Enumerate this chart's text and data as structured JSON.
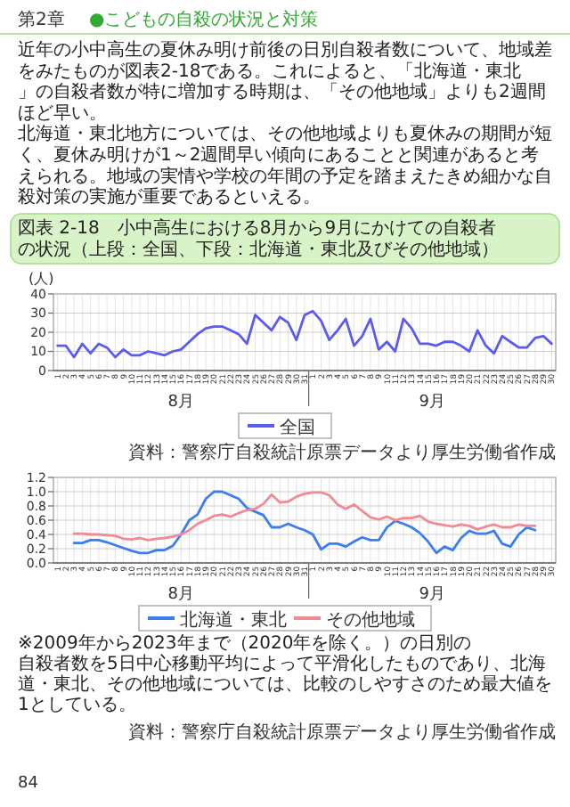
{
  "chart_data": [
    {
      "type": "line",
      "title": "図表 2-18　小中高生における8月から9月にかけての自殺者の状況（上段：全国、下段：北海道・東北及びその他地域）",
      "ylabel": "(人)",
      "categories": [
        "1",
        "2",
        "3",
        "4",
        "5",
        "6",
        "7",
        "8",
        "9",
        "10",
        "11",
        "12",
        "13",
        "14",
        "15",
        "16",
        "17",
        "18",
        "19",
        "20",
        "21",
        "22",
        "23",
        "24",
        "25",
        "26",
        "27",
        "28",
        "29",
        "30",
        "31",
        "1",
        "2",
        "3",
        "4",
        "5",
        "6",
        "7",
        "8",
        "9",
        "10",
        "11",
        "12",
        "13",
        "14",
        "15",
        "16",
        "17",
        "18",
        "19",
        "20",
        "21",
        "22",
        "23",
        "24",
        "25",
        "26",
        "27",
        "28",
        "29",
        "30"
      ],
      "series": [
        {
          "name": "全国",
          "color": "#5b5bf2",
          "values": [
            13,
            13,
            7,
            14,
            9,
            14,
            12,
            7,
            11,
            8,
            8,
            10,
            9,
            8,
            10,
            11,
            15,
            19,
            22,
            23,
            23,
            21,
            19,
            14,
            29,
            25,
            21,
            28,
            25,
            16,
            29,
            31,
            26,
            16,
            21,
            27,
            13,
            18,
            27,
            11,
            15,
            10,
            27,
            22,
            14,
            14,
            13,
            15,
            15,
            13,
            10,
            21,
            13,
            9,
            18,
            15,
            12,
            12,
            17,
            18,
            14
          ]
        }
      ],
      "ylim": [
        0,
        40
      ],
      "yticks": [
        0,
        10,
        20,
        30,
        40
      ],
      "grid": true,
      "legend": "bottom",
      "marker": "none",
      "line_style": "solid",
      "annotations": [
        "第2章",
        "●こどもの自殺の状況と対策",
        "近年の小中高生の夏休み明け前後の日別自殺者数について、地域差をみたものが図表2-18である。これによると、「北海道・東北」の自殺者数が特に増加する時期は、「その他地域」よりも2週間ほど早い。",
        "北海道・東北地方については、その他地域よりも夏休みの期間が短く、夏休み明けが1～2週間早い傾向にあることと関連があると考えられる。地域の実情や学校の年間の予定を踏まえたきめ細かな自殺対策の実施が重要であるといえる。",
        "8月",
        "9月",
        "資料：警察庁自殺統計原票データより厚生労働省作成",
        "84"
      ]
    },
    {
      "type": "line",
      "categories": [
        "1",
        "2",
        "3",
        "4",
        "5",
        "6",
        "7",
        "8",
        "9",
        "10",
        "11",
        "12",
        "13",
        "14",
        "15",
        "16",
        "17",
        "18",
        "19",
        "20",
        "21",
        "22",
        "23",
        "24",
        "25",
        "26",
        "27",
        "28",
        "29",
        "30",
        "31",
        "1",
        "2",
        "3",
        "4",
        "5",
        "6",
        "7",
        "8",
        "9",
        "10",
        "11",
        "12",
        "13",
        "14",
        "15",
        "16",
        "17",
        "18",
        "19",
        "20",
        "21",
        "22",
        "23",
        "24",
        "25",
        "26",
        "27",
        "28",
        "29",
        "30"
      ],
      "series": [
        {
          "name": "北海道・東北",
          "color": "#3a7ef0",
          "values": [
            null,
            null,
            0.28,
            0.28,
            0.32,
            0.32,
            0.29,
            0.25,
            0.21,
            0.17,
            0.14,
            0.14,
            0.18,
            0.18,
            0.24,
            0.4,
            0.6,
            0.68,
            0.9,
            1.0,
            1.0,
            0.95,
            0.9,
            0.77,
            0.72,
            0.67,
            0.5,
            0.5,
            0.55,
            0.5,
            0.46,
            0.4,
            0.19,
            0.27,
            0.27,
            0.23,
            0.3,
            0.36,
            0.32,
            0.32,
            0.5,
            0.59,
            0.55,
            0.5,
            0.42,
            0.3,
            0.14,
            0.23,
            0.18,
            0.35,
            0.45,
            0.41,
            0.41,
            0.45,
            0.27,
            0.23,
            0.4,
            0.5,
            0.46,
            null,
            null
          ]
        },
        {
          "name": "その他地域",
          "color": "#f08a94",
          "values": [
            null,
            null,
            0.41,
            0.41,
            0.4,
            0.4,
            0.39,
            0.38,
            0.34,
            0.33,
            0.35,
            0.32,
            0.34,
            0.35,
            0.37,
            0.4,
            0.46,
            0.55,
            0.6,
            0.66,
            0.68,
            0.65,
            0.7,
            0.74,
            0.76,
            0.83,
            0.96,
            0.85,
            0.86,
            0.93,
            0.97,
            0.99,
            0.99,
            0.95,
            0.82,
            0.76,
            0.82,
            0.73,
            0.64,
            0.61,
            0.65,
            0.6,
            0.63,
            0.63,
            0.66,
            0.58,
            0.55,
            0.53,
            0.51,
            0.54,
            0.52,
            0.47,
            0.51,
            0.54,
            0.5,
            0.5,
            0.54,
            0.52,
            0.52,
            null,
            null
          ]
        }
      ],
      "ylim": [
        0,
        1.2
      ],
      "yticks": [
        {
          "value": 0,
          "label": "0.0"
        },
        {
          "value": 0.2,
          "label": "0.2"
        },
        {
          "value": 0.4,
          "label": "0.4"
        },
        {
          "value": 0.6,
          "label": "0.6"
        },
        {
          "value": 0.8,
          "label": "0.8"
        },
        {
          "value": 1,
          "label": "1.0"
        },
        {
          "value": 1.2,
          "label": "1.2"
        }
      ],
      "grid": true,
      "legend": "bottom",
      "marker": "none",
      "line_style": "solid",
      "annotations": [
        "8月",
        "9月",
        "※2009年から2023年まで（2020年を除く。）の日別の自殺者数を5日中心移動平均によって平滑化したものであり、北海道・東北、その他地域については、比較のしやすさのため最大値を1としている。",
        "資料：警察庁自殺統計原票データより厚生労働省作成"
      ]
    }
  ]
}
